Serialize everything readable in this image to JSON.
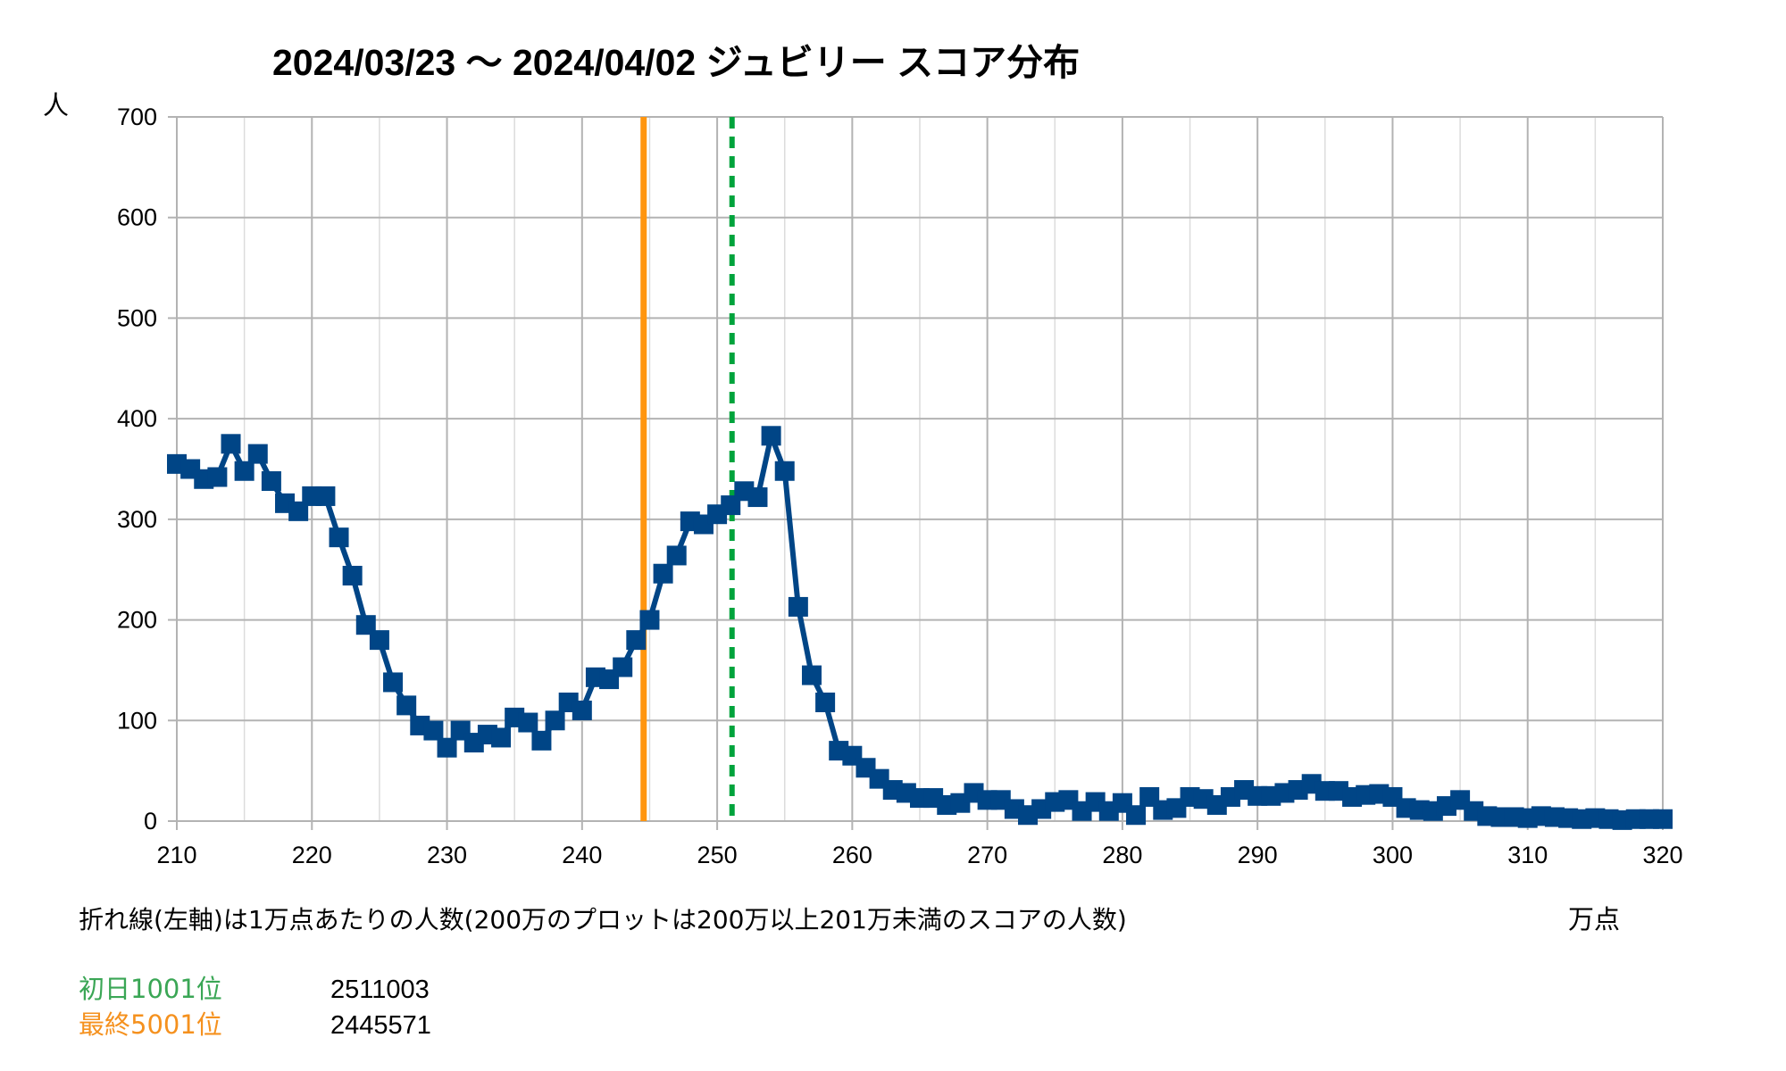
{
  "chart_data": {
    "type": "line",
    "title": "2024/03/23 〜 2024/04/02 ジュビリー スコア分布",
    "ylabel": "人",
    "xlabel": "万点",
    "caption": "折れ線(左軸)は1万点あたりの人数(200万のプロットは200万以上201万未満のスコアの人数)",
    "xlim": [
      210,
      320
    ],
    "ylim": [
      0,
      700
    ],
    "x_ticks": [
      "210",
      "220",
      "230",
      "240",
      "250",
      "260",
      "270",
      "280",
      "290",
      "300",
      "310",
      "320"
    ],
    "y_ticks": [
      "0",
      "100",
      "200",
      "300",
      "400",
      "500",
      "600",
      "700"
    ],
    "grid": true,
    "series": [
      {
        "color": "#004586",
        "marker": "square",
        "x": [
          210,
          211,
          212,
          213,
          214,
          215,
          216,
          217,
          218,
          219,
          220,
          221,
          222,
          223,
          224,
          225,
          226,
          227,
          228,
          229,
          230,
          231,
          232,
          233,
          234,
          235,
          236,
          237,
          238,
          239,
          240,
          241,
          242,
          243,
          244,
          245,
          246,
          247,
          248,
          249,
          250,
          251,
          252,
          253,
          254,
          255,
          256,
          257,
          258,
          259,
          260,
          261,
          262,
          263,
          264,
          265,
          266,
          267,
          268,
          269,
          270,
          271,
          272,
          273,
          274,
          275,
          276,
          277,
          278,
          279,
          280,
          281,
          282,
          283,
          284,
          285,
          286,
          287,
          288,
          289,
          290,
          291,
          292,
          293,
          294,
          295,
          296,
          297,
          298,
          299,
          300,
          301,
          302,
          303,
          304,
          305,
          306,
          307,
          308,
          309,
          310,
          311,
          312,
          313,
          314,
          315,
          316,
          317,
          318,
          319,
          320
        ],
        "values": [
          355,
          350,
          340,
          342,
          375,
          348,
          365,
          338,
          316,
          308,
          323,
          323,
          282,
          244,
          195,
          180,
          138,
          115,
          95,
          90,
          73,
          90,
          78,
          86,
          83,
          103,
          98,
          80,
          100,
          118,
          110,
          143,
          141,
          153,
          180,
          200,
          246,
          264,
          298,
          295,
          305,
          314,
          328,
          322,
          383,
          348,
          213,
          145,
          118,
          70,
          65,
          53,
          42,
          31,
          28,
          23,
          23,
          16,
          18,
          28,
          21,
          21,
          12,
          6,
          12,
          19,
          21,
          10,
          19,
          10,
          18,
          6,
          24,
          11,
          13,
          24,
          22,
          16,
          24,
          31,
          25,
          25,
          28,
          31,
          37,
          30,
          30,
          24,
          26,
          27,
          24,
          13,
          11,
          10,
          15,
          21,
          10,
          5,
          4,
          4,
          3,
          5,
          4,
          3,
          2,
          3,
          2,
          1,
          2,
          2,
          2
        ]
      }
    ],
    "reference_lines": [
      {
        "name": "初日1001位",
        "x": 251.1003,
        "color": "#00a33c",
        "style": "dashed"
      },
      {
        "name": "最終5001位",
        "x": 244.5571,
        "color": "#ff950e",
        "style": "solid"
      }
    ],
    "legend": [
      {
        "label": "初日1001位",
        "value": "2511003",
        "color": "#3aa655"
      },
      {
        "label": "最終5001位",
        "value": "2445571",
        "color": "#f5911e"
      }
    ]
  }
}
